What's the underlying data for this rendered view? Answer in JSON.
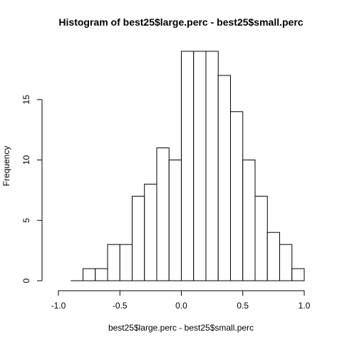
{
  "chart_data": {
    "type": "bar",
    "title": "Histogram of best25$large.perc - best25$small.perc",
    "xlabel": "best25$large.perc - best25$small.perc",
    "ylabel": "Frequency",
    "bin_width": 0.1,
    "bins": [
      {
        "x0": -0.9,
        "x1": -0.8,
        "count": 0
      },
      {
        "x0": -0.8,
        "x1": -0.7,
        "count": 1
      },
      {
        "x0": -0.7,
        "x1": -0.6,
        "count": 1
      },
      {
        "x0": -0.6,
        "x1": -0.5,
        "count": 3
      },
      {
        "x0": -0.5,
        "x1": -0.4,
        "count": 3
      },
      {
        "x0": -0.4,
        "x1": -0.3,
        "count": 7
      },
      {
        "x0": -0.3,
        "x1": -0.2,
        "count": 8
      },
      {
        "x0": -0.2,
        "x1": -0.1,
        "count": 11
      },
      {
        "x0": -0.1,
        "x1": 0.0,
        "count": 10
      },
      {
        "x0": 0.0,
        "x1": 0.1,
        "count": 19
      },
      {
        "x0": 0.1,
        "x1": 0.2,
        "count": 19
      },
      {
        "x0": 0.2,
        "x1": 0.3,
        "count": 19
      },
      {
        "x0": 0.3,
        "x1": 0.4,
        "count": 17
      },
      {
        "x0": 0.4,
        "x1": 0.5,
        "count": 14
      },
      {
        "x0": 0.5,
        "x1": 0.6,
        "count": 10
      },
      {
        "x0": 0.6,
        "x1": 0.7,
        "count": 7
      },
      {
        "x0": 0.7,
        "x1": 0.8,
        "count": 4
      },
      {
        "x0": 0.8,
        "x1": 0.9,
        "count": 3
      },
      {
        "x0": 0.9,
        "x1": 1.0,
        "count": 1
      }
    ],
    "xticks": [
      -1.0,
      -0.5,
      0.0,
      0.5,
      1.0
    ],
    "xtick_labels": [
      "-1.0",
      "-0.5",
      "0.0",
      "0.5",
      "1.0"
    ],
    "yticks": [
      0,
      5,
      10,
      15
    ],
    "ytick_labels": [
      "0",
      "5",
      "10",
      "15"
    ],
    "xlim": [
      -1.0,
      1.0
    ],
    "ylim": [
      0,
      19
    ],
    "grid": false,
    "colors": {
      "bar_fill": "#ffffff",
      "bar_stroke": "#000000"
    }
  }
}
